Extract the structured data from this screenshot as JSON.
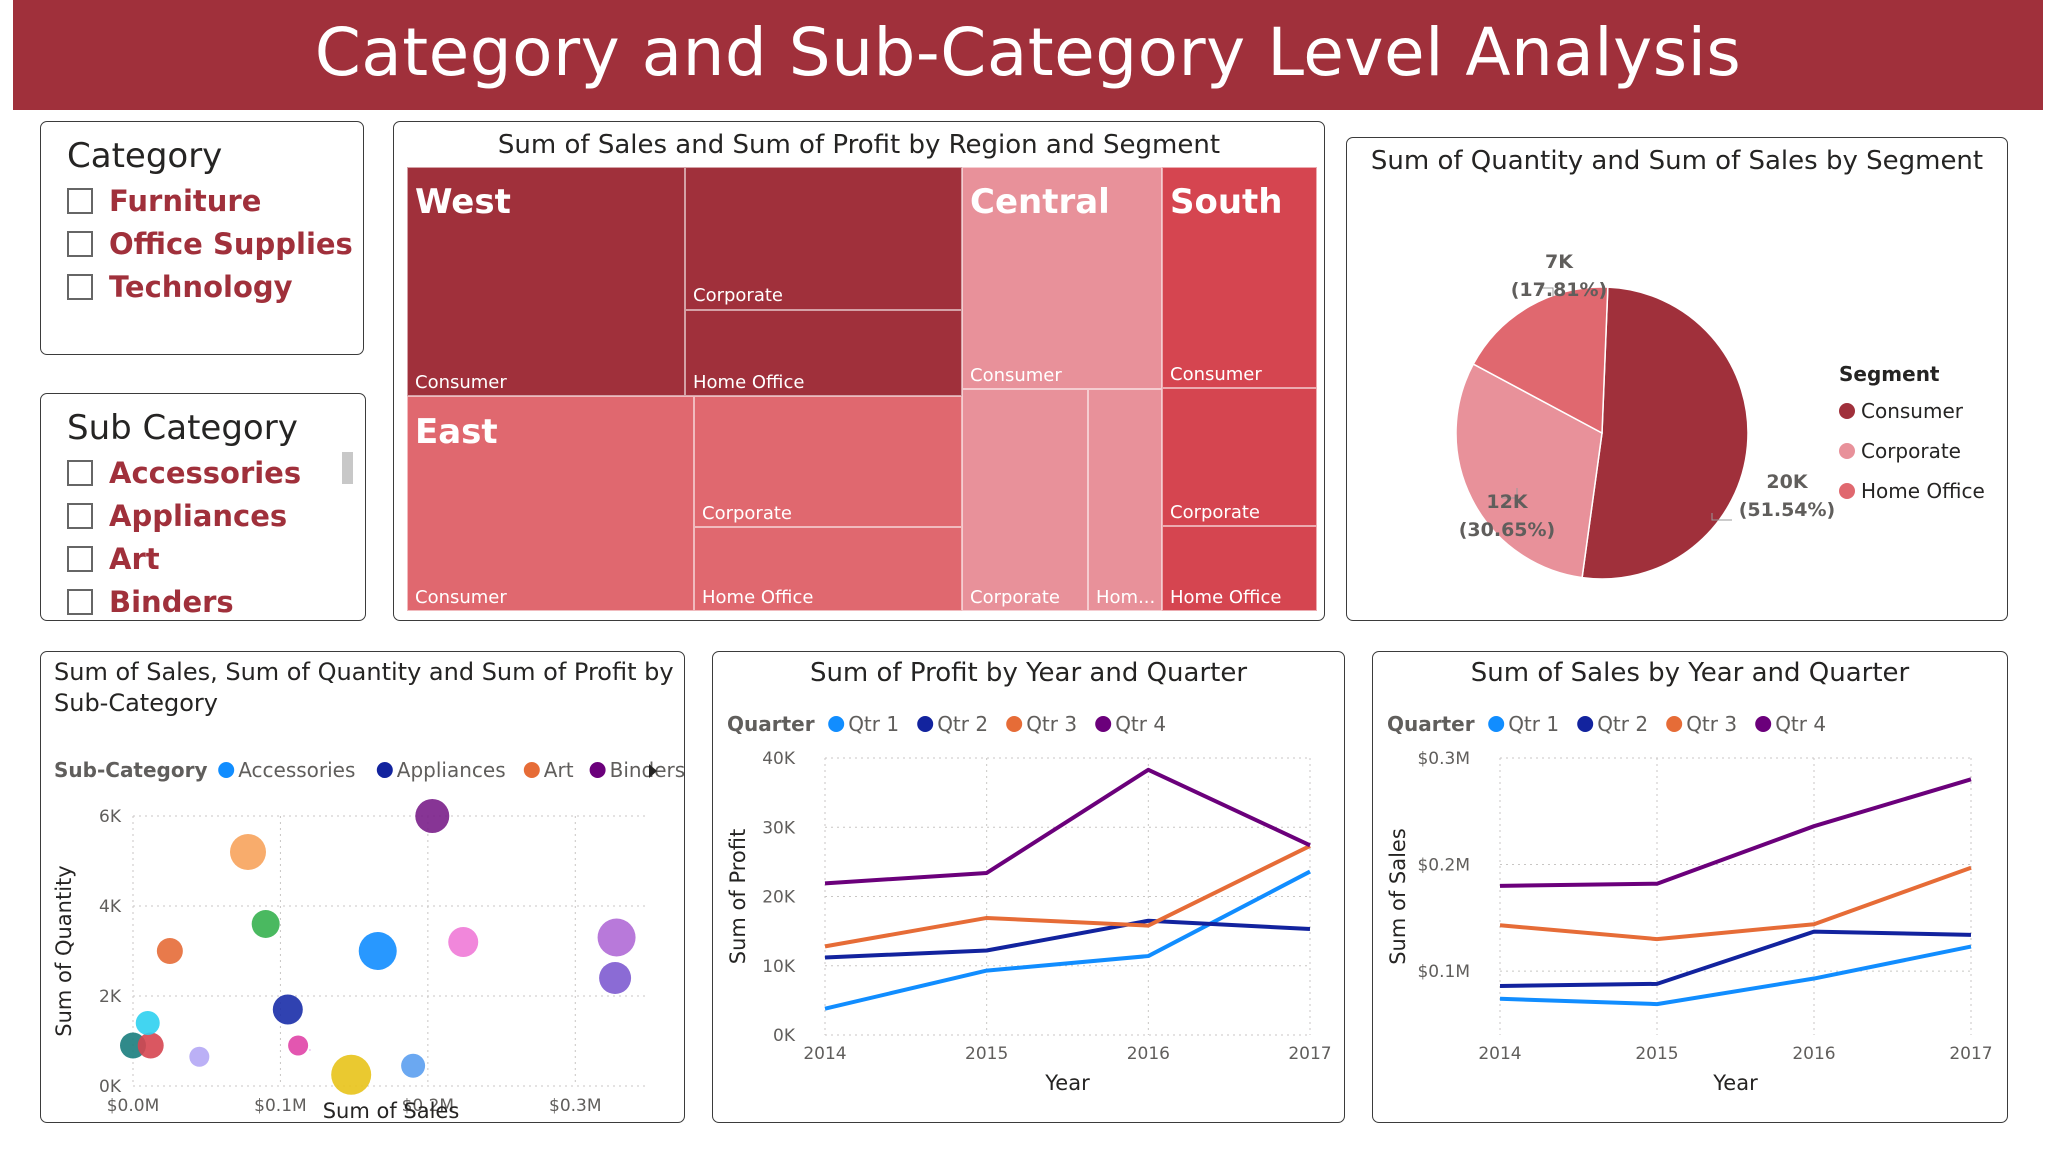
{
  "header": {
    "title": "Category and Sub-Category Level Analysis"
  },
  "category_slicer": {
    "title": "Category",
    "items": [
      {
        "label": "Furniture"
      },
      {
        "label": "Office Supplies"
      },
      {
        "label": "Technology"
      }
    ]
  },
  "subcategory_slicer": {
    "title": "Sub Category",
    "items": [
      {
        "label": "Accessories"
      },
      {
        "label": "Appliances"
      },
      {
        "label": "Art"
      },
      {
        "label": "Binders"
      }
    ]
  },
  "treemap": {
    "title": "Sum of Sales and Sum of Profit by Region and Segment",
    "regions": {
      "west": {
        "name": "West",
        "segments": [
          "Consumer",
          "Corporate",
          "Home Office"
        ]
      },
      "east": {
        "name": "East",
        "segments": [
          "Consumer",
          "Corporate",
          "Home Office"
        ]
      },
      "central": {
        "name": "Central",
        "segments": [
          "Consumer",
          "Corporate",
          "Hom..."
        ]
      },
      "south": {
        "name": "South",
        "segments": [
          "Consumer",
          "Corporate",
          "Home Office"
        ]
      }
    },
    "colors": {
      "west": "#a0303b",
      "east": "#e0686f",
      "central": "#e8919a",
      "south": "#d54550"
    }
  },
  "pie": {
    "title": "Sum of Quantity and Sum of Sales by Segment",
    "legend_title": "Segment",
    "slices": [
      {
        "name": "Consumer",
        "value": 20,
        "percent": 51.54,
        "label_value": "20K",
        "label_pct": "(51.54%)",
        "color": "#a0303b"
      },
      {
        "name": "Corporate",
        "value": 12,
        "percent": 30.65,
        "label_value": "12K",
        "label_pct": "(30.65%)",
        "color": "#e8919a"
      },
      {
        "name": "Home Office",
        "value": 7,
        "percent": 17.81,
        "label_value": "7K",
        "label_pct": "(17.81%)",
        "color": "#e0686f"
      }
    ]
  },
  "scatter": {
    "title_line1": "Sum of Sales, Sum of Quantity and Sum of Profit by",
    "title_line2": "Sub-Category",
    "legend_title": "Sub-Category",
    "legend_items": [
      {
        "name": "Accessories",
        "color": "#118dff"
      },
      {
        "name": "Appliances",
        "color": "#12239e"
      },
      {
        "name": "Art",
        "color": "#e66c37"
      },
      {
        "name": "Binders",
        "color": "#6b007b"
      }
    ],
    "xlabel": "Sum of Sales",
    "ylabel": "Sum of Quantity",
    "xticks": [
      "$0.0M",
      "$0.1M",
      "$0.2M",
      "$0.3M"
    ],
    "yticks": [
      "0K",
      "2K",
      "4K",
      "6K"
    ]
  },
  "profit_line": {
    "title": "Sum of Profit by Year and Quarter",
    "legend_title": "Quarter",
    "xlabel": "Year",
    "ylabel": "Sum of Profit",
    "yticks": [
      "0K",
      "10K",
      "20K",
      "30K",
      "40K"
    ]
  },
  "sales_line": {
    "title": "Sum of Sales by Year and Quarter",
    "legend_title": "Quarter",
    "xlabel": "Year",
    "ylabel": "Sum of Sales",
    "yticks": [
      "$0.1M",
      "$0.2M",
      "$0.3M"
    ]
  },
  "chart_data": [
    {
      "type": "pie",
      "title": "Sum of Quantity and Sum of Sales by Segment",
      "categories": [
        "Consumer",
        "Corporate",
        "Home Office"
      ],
      "values": [
        20000,
        12000,
        7000
      ],
      "percents": [
        51.54,
        30.65,
        17.81
      ]
    },
    {
      "type": "scatter",
      "title": "Sum of Sales, Sum of Quantity and Sum of Profit by Sub-Category",
      "xlabel": "Sum of Sales",
      "ylabel": "Sum of Quantity",
      "xlim": [
        0,
        0.35
      ],
      "ylim": [
        0,
        6000
      ],
      "points": [
        {
          "x": 0.12,
          "y": 800,
          "size": 1,
          "color": "#e8c4f0"
        },
        {
          "x": 0.0,
          "y": 900,
          "size": 13,
          "color": "#1a7d7d"
        },
        {
          "x": 0.012,
          "y": 900,
          "size": 13,
          "color": "#d64550"
        },
        {
          "x": 0.01,
          "y": 1400,
          "size": 12,
          "color": "#2ed0f0"
        },
        {
          "x": 0.045,
          "y": 650,
          "size": 10,
          "color": "#b4a7f5"
        },
        {
          "x": 0.025,
          "y": 3000,
          "size": 13,
          "color": "#e66c37"
        },
        {
          "x": 0.078,
          "y": 5200,
          "size": 18,
          "color": "#f7a35c"
        },
        {
          "x": 0.09,
          "y": 3600,
          "size": 14,
          "color": "#36b14f"
        },
        {
          "x": 0.105,
          "y": 1700,
          "size": 15,
          "color": "#1a2ea8"
        },
        {
          "x": 0.112,
          "y": 900,
          "size": 10,
          "color": "#e044a7"
        },
        {
          "x": 0.148,
          "y": 250,
          "size": 20,
          "color": "#e8c31a"
        },
        {
          "x": 0.166,
          "y": 3000,
          "size": 19,
          "color": "#118dff"
        },
        {
          "x": 0.19,
          "y": 450,
          "size": 12,
          "color": "#5b9ef0"
        },
        {
          "x": 0.203,
          "y": 6000,
          "size": 17,
          "color": "#7a1f8a"
        },
        {
          "x": 0.224,
          "y": 3200,
          "size": 15,
          "color": "#f07ad7"
        },
        {
          "x": 0.328,
          "y": 3300,
          "size": 19,
          "color": "#b06ad6"
        },
        {
          "x": 0.327,
          "y": 2400,
          "size": 16,
          "color": "#7e5bd0"
        }
      ]
    },
    {
      "type": "line",
      "title": "Sum of Profit by Year and Quarter",
      "x": [
        2014,
        2015,
        2016,
        2017
      ],
      "ylim": [
        0,
        40000
      ],
      "series": [
        {
          "name": "Qtr 1",
          "color": "#118dff",
          "values": [
            3800,
            9300,
            11400,
            23600
          ]
        },
        {
          "name": "Qtr 2",
          "color": "#12239e",
          "values": [
            11200,
            12200,
            16500,
            15300
          ]
        },
        {
          "name": "Qtr 3",
          "color": "#e66c37",
          "values": [
            12800,
            16900,
            15800,
            27300
          ]
        },
        {
          "name": "Qtr 4",
          "color": "#6b007b",
          "values": [
            21900,
            23400,
            38300,
            27400
          ]
        }
      ]
    },
    {
      "type": "line",
      "title": "Sum of Sales by Year and Quarter",
      "x": [
        2014,
        2015,
        2016,
        2017
      ],
      "ylim": [
        0.04,
        0.3
      ],
      "series": [
        {
          "name": "Qtr 1",
          "color": "#118dff",
          "values": [
            0.074,
            0.069,
            0.093,
            0.123
          ]
        },
        {
          "name": "Qtr 2",
          "color": "#12239e",
          "values": [
            0.086,
            0.088,
            0.137,
            0.134
          ]
        },
        {
          "name": "Qtr 3",
          "color": "#e66c37",
          "values": [
            0.143,
            0.13,
            0.144,
            0.197
          ]
        },
        {
          "name": "Qtr 4",
          "color": "#6b007b",
          "values": [
            0.18,
            0.182,
            0.236,
            0.28
          ]
        }
      ]
    }
  ]
}
